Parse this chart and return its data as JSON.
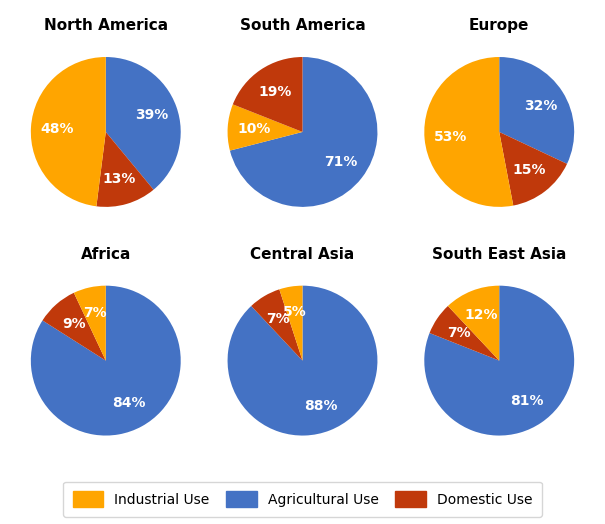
{
  "regions": [
    "North America",
    "South America",
    "Europe",
    "Africa",
    "Central Asia",
    "South East Asia"
  ],
  "data": [
    {
      "sizes": [
        39,
        13,
        48
      ],
      "colors": [
        "#4472C4",
        "#C0390B",
        "#FFA500"
      ]
    },
    {
      "sizes": [
        71,
        10,
        19
      ],
      "colors": [
        "#4472C4",
        "#FFA500",
        "#C0390B"
      ]
    },
    {
      "sizes": [
        32,
        15,
        53
      ],
      "colors": [
        "#4472C4",
        "#C0390B",
        "#FFA500"
      ]
    },
    {
      "sizes": [
        84,
        9,
        7
      ],
      "colors": [
        "#4472C4",
        "#C0390B",
        "#FFA500"
      ]
    },
    {
      "sizes": [
        88,
        7,
        5
      ],
      "colors": [
        "#4472C4",
        "#C0390B",
        "#FFA500"
      ]
    },
    {
      "sizes": [
        81,
        7,
        12
      ],
      "colors": [
        "#4472C4",
        "#C0390B",
        "#FFA500"
      ]
    }
  ],
  "legend_labels": [
    "Industrial Use",
    "Agricultural Use",
    "Domestic Use"
  ],
  "legend_colors": [
    "#FFA500",
    "#4472C4",
    "#C0390B"
  ],
  "background_color": "#FFFFFF",
  "label_fontsize": 10,
  "title_fontsize": 11,
  "legend_fontsize": 10,
  "startangle": 90,
  "pctdistance": 0.65
}
